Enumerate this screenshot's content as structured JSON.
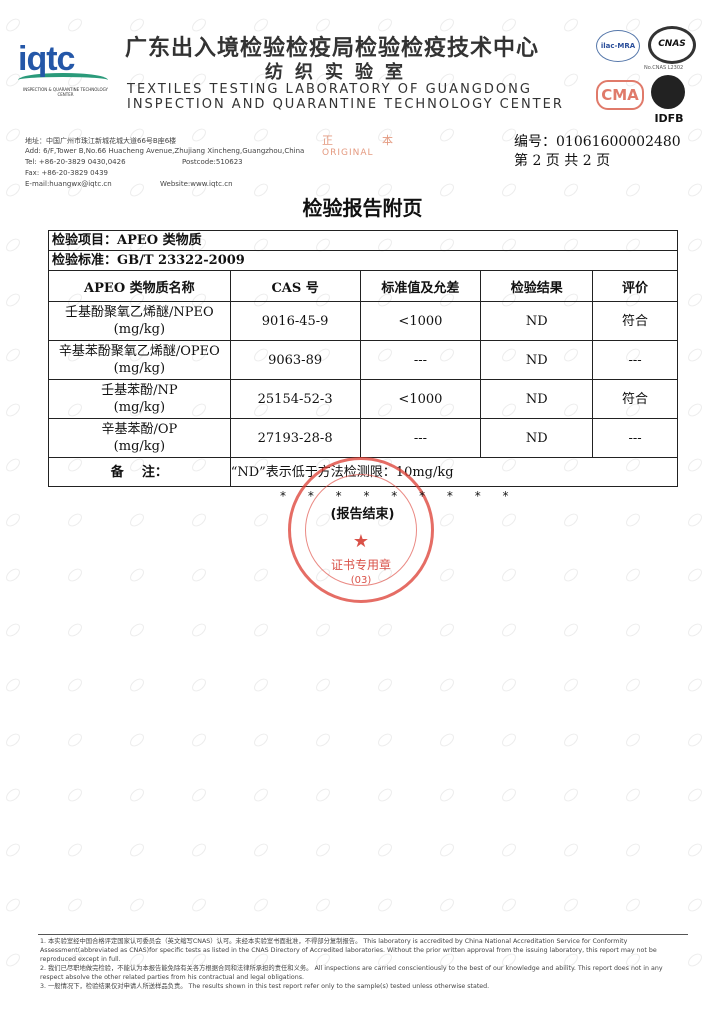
{
  "header": {
    "logo": "iqtc",
    "logo_sub": "INSPECTION & QUARANTINE TECHNOLOGY CENTER",
    "title_cn": "广东出入境检验检疫局检验检疫技术中心",
    "subtitle_cn": "纺织实验室",
    "title_en_1": "TEXTILES TESTING LABORATORY OF GUANGDONG",
    "title_en_2": "INSPECTION AND QUARANTINE TECHNOLOGY CENTER",
    "cert_cnas_no": "No.CNAS L2302",
    "cert_logos": [
      "ilac-MRA",
      "CNAS",
      "CMA",
      "IDFB"
    ]
  },
  "contact": {
    "address_cn": "地址：中国广州市珠江新城花城大道66号B座6楼",
    "address_en": "Add: 6/F,Tower B,No.66 Huacheng Avenue,Zhujiang Xincheng,Guangzhou,China",
    "tel": "Tel: +86-20-3829 0430,0426",
    "postcode": "Postcode:510623",
    "fax": "Fax: +86-20-3829 0439",
    "email": "E-mail:huangwx@iqtc.cn",
    "website": "Website:www.iqtc.cn"
  },
  "original_mark": {
    "cn": "正  本",
    "en": "ORIGINAL"
  },
  "report": {
    "number": "编号：01061600002480",
    "page": "第 2 页  共 2 页",
    "title": "检验报告附页"
  },
  "table": {
    "item": "检验项目：APEO 类物质",
    "standard": "检验标准：GB/T 23322-2009",
    "headers": [
      "APEO 类物质名称",
      "CAS 号",
      "标准值及允差",
      "检验结果",
      "评价"
    ],
    "rows": [
      {
        "name": "壬基酚聚氧乙烯醚/NPEO",
        "unit": "(mg/kg)",
        "cas": "9016-45-9",
        "limit": "<1000",
        "result": "ND",
        "eval": "符合"
      },
      {
        "name": "辛基苯酚聚氧乙烯醚/OPEO",
        "unit": "(mg/kg)",
        "cas": "9063-89",
        "limit": "---",
        "result": "ND",
        "eval": "---"
      },
      {
        "name": "壬基苯酚/NP",
        "unit": "(mg/kg)",
        "cas": "25154-52-3",
        "limit": "<1000",
        "result": "ND",
        "eval": "符合"
      },
      {
        "name": "辛基苯酚/OP",
        "unit": "(mg/kg)",
        "cas": "27193-28-8",
        "limit": "---",
        "result": "ND",
        "eval": "---"
      }
    ],
    "remark_label": "备    注：",
    "remark": "“ND”表示低于方法检测限：10mg/kg"
  },
  "end": {
    "stars": "* * * * * * * * *",
    "text": "(报告结束)"
  },
  "stamp": {
    "text": "证书专用章",
    "number": "(03)"
  },
  "footnotes": [
    "1. 本实验室经中国合格评定国家认可委员会（英文缩写CNAS）认可。未经本实验室书面批准，不得部分复制报告。  This laboratory is accredited by China National Accreditation Service for Conformity Assessment(abbreviated as CNAS)for specific tests as listed in the CNAS Directory of Accredited laboratories. Without the prior written approval from the issuing laboratory, this report may not be reproduced except in full.",
    "2. 我们已尽职地做完检验，不能认为本报告能免除有关各方根据合同和法律所承担的责任和义务。  All inspections are carried conscientiously to the best of our knowledge and ability. This report does not in any respect absolve the other related parties from his contractual and legal obligations.",
    "3. 一般情况下，检验结果仅对申请人所送样品负责。  The results shown in this test report refer only to the sample(s) tested unless otherwise stated."
  ]
}
